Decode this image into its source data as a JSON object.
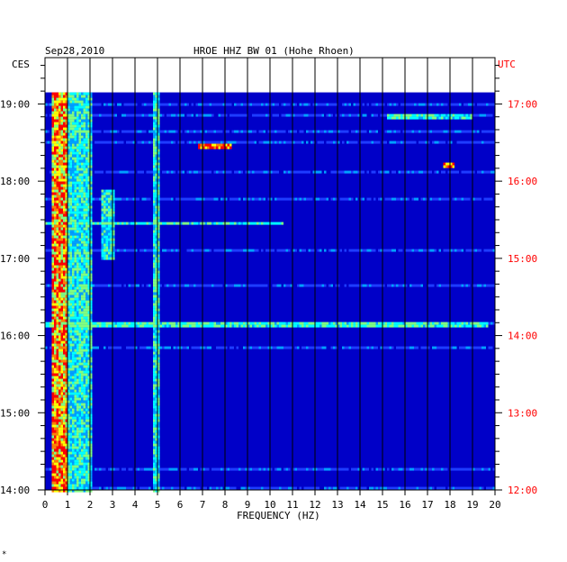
{
  "chart_data": {
    "type": "heatmap",
    "title_date": "Sep28,2010",
    "title_station": "HROE HHZ BW 01 (Hohe Rhoen)",
    "xlabel": "FREQUENCY (HZ)",
    "xlim": [
      0,
      20
    ],
    "x_ticks": [
      "0",
      "1",
      "2",
      "3",
      "4",
      "5",
      "6",
      "7",
      "8",
      "9",
      "10",
      "11",
      "12",
      "13",
      "14",
      "15",
      "16",
      "17",
      "18",
      "19",
      "20"
    ],
    "left_timezone": "CES",
    "right_timezone": "UTC",
    "left_time_labels": [
      "19:00",
      "18:00",
      "17:00",
      "16:00",
      "15:00",
      "14:00"
    ],
    "right_time_labels": [
      "17:00",
      "16:00",
      "15:00",
      "14:00",
      "13:00",
      "12:00"
    ],
    "time_range_hours": [
      14.0,
      19.15
    ],
    "data_start_hour": 19.15,
    "grid": true,
    "colormap": [
      "#00008b",
      "#0000c8",
      "#1e3cff",
      "#00a0ff",
      "#00ffff",
      "#80ff80",
      "#ffff00",
      "#ff8000",
      "#ff0000"
    ],
    "energy_bands": [
      {
        "freq_range": [
          0.3,
          0.9
        ],
        "intensity": "high",
        "note": "persistent microseism band"
      },
      {
        "freq_range": [
          1.0,
          2.0
        ],
        "intensity": "medium"
      },
      {
        "freq_range": [
          2.5,
          3.0
        ],
        "intensity": "medium",
        "time_range": [
          17.0,
          17.9
        ]
      },
      {
        "freq_range": [
          4.8,
          5.0
        ],
        "intensity": "medium",
        "note": "narrow line"
      }
    ],
    "events": [
      {
        "hour": 16.15,
        "freq_range": [
          0,
          19.6
        ],
        "intensity": "medium"
      },
      {
        "hour": 17.47,
        "freq_range": [
          0,
          10.5
        ],
        "intensity": "medium"
      },
      {
        "hour": 18.47,
        "freq_range": [
          6.8,
          8.2
        ],
        "intensity": "high"
      },
      {
        "hour": 18.23,
        "freq_range": [
          17.7,
          18.1
        ],
        "intensity": "high"
      },
      {
        "hour": 18.84,
        "freq_range": [
          15.2,
          18.9
        ],
        "intensity": "medium"
      }
    ]
  },
  "footer_mark": "*"
}
